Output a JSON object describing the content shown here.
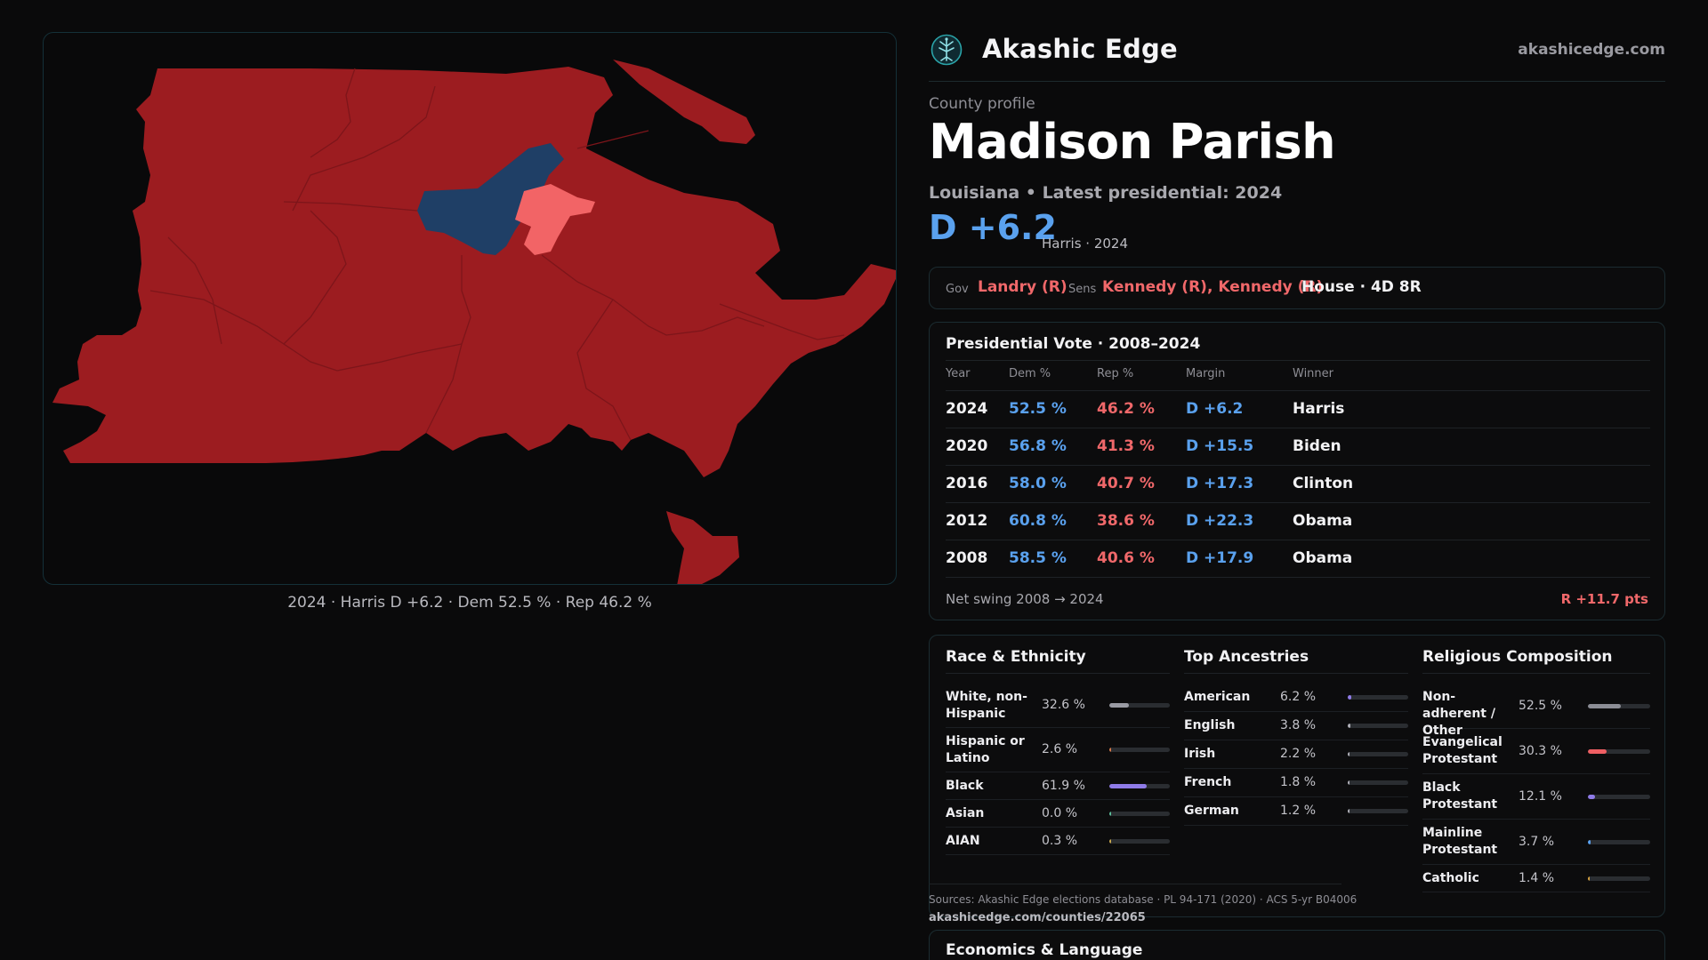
{
  "brand": {
    "name": "Akashic Edge",
    "url": "akashicedge.com",
    "logo": "tree-of-life-icon"
  },
  "map": {
    "caption": "2024 · Harris D +6.2 · Dem 52.5 % · Rep 46.2 %",
    "colors": {
      "rep_dark": "#9c1c20",
      "rep_light": "#f26466",
      "dem": "#1f3f66",
      "background": "#09090a"
    }
  },
  "profile": {
    "eyebrow": "County profile",
    "title": "Madison Parish",
    "subline": "Louisiana • Latest presidential: 2024",
    "margin": "D +6.2",
    "margin_sub": "Harris · 2024"
  },
  "officials": {
    "gov_label": "Gov",
    "gov": "Landry (R)",
    "sens_label": "Sens",
    "sens": "Kennedy (R), Kennedy (R)",
    "house": "House · 4D 8R"
  },
  "presidential": {
    "title": "Presidential Vote · 2008–2024",
    "headers": [
      "Year",
      "Dem %",
      "Rep %",
      "Margin",
      "Winner"
    ],
    "rows": [
      {
        "year": "2024",
        "dem": "52.5 %",
        "rep": "46.2 %",
        "margin": "D +6.2",
        "winner": "Harris"
      },
      {
        "year": "2020",
        "dem": "56.8 %",
        "rep": "41.3 %",
        "margin": "D +15.5",
        "winner": "Biden"
      },
      {
        "year": "2016",
        "dem": "58.0 %",
        "rep": "40.7 %",
        "margin": "D +17.3",
        "winner": "Clinton"
      },
      {
        "year": "2012",
        "dem": "60.8 %",
        "rep": "38.6 %",
        "margin": "D +22.3",
        "winner": "Obama"
      },
      {
        "year": "2008",
        "dem": "58.5 %",
        "rep": "40.6 %",
        "margin": "D +17.9",
        "winner": "Obama"
      }
    ],
    "swing_label": "Net swing 2008 → 2024",
    "swing_value": "R +11.7 pts"
  },
  "race": {
    "title": "Race & Ethnicity",
    "items": [
      {
        "label": "White, non-Hispanic",
        "value": "32.6 %",
        "pct": 32.6,
        "color": "#9a9ba3"
      },
      {
        "label": "Hispanic or Latino",
        "value": "2.6 %",
        "pct": 2.6,
        "color": "#d97a4a"
      },
      {
        "label": "Black",
        "value": "61.9 %",
        "pct": 61.9,
        "color": "#8f7be8"
      },
      {
        "label": "Asian",
        "value": "0.0 %",
        "pct": 0.0,
        "color": "#5bbf9a"
      },
      {
        "label": "AIAN",
        "value": "0.3 %",
        "pct": 0.3,
        "color": "#c9a84e"
      }
    ]
  },
  "ancestry": {
    "title": "Top Ancestries",
    "items": [
      {
        "label": "American",
        "value": "6.2 %",
        "pct": 6.2,
        "color": "#8f7be8"
      },
      {
        "label": "English",
        "value": "3.8 %",
        "pct": 3.8,
        "color": "#b0b0b8"
      },
      {
        "label": "Irish",
        "value": "2.2 %",
        "pct": 2.2,
        "color": "#b0b0b8"
      },
      {
        "label": "French",
        "value": "1.8 %",
        "pct": 1.8,
        "color": "#b0b0b8"
      },
      {
        "label": "German",
        "value": "1.2 %",
        "pct": 1.2,
        "color": "#b0b0b8"
      }
    ]
  },
  "religion": {
    "title": "Religious Composition",
    "items": [
      {
        "label": "Non-adherent / Other",
        "value": "52.5 %",
        "pct": 52.5,
        "color": "#8c8d95"
      },
      {
        "label": "Evangelical Protestant",
        "value": "30.3 %",
        "pct": 30.3,
        "color": "#ef5f63"
      },
      {
        "label": "Black Protestant",
        "value": "12.1 %",
        "pct": 12.1,
        "color": "#8f7be8"
      },
      {
        "label": "Mainline Protestant",
        "value": "3.7 %",
        "pct": 3.7,
        "color": "#5aa1ee"
      },
      {
        "label": "Catholic",
        "value": "1.4 %",
        "pct": 1.4,
        "color": "#d6a23f"
      }
    ]
  },
  "sources": {
    "text": "Sources: Akashic Edge elections database · PL 94-171 (2020) · ACS 5-yr B04006",
    "url": "akashicedge.com/counties/22065"
  },
  "economics": {
    "title": "Economics & Language"
  }
}
